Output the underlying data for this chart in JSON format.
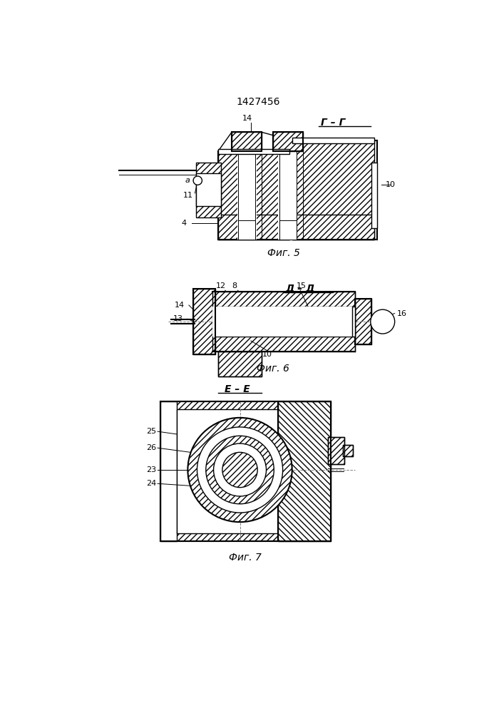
{
  "title": "1427456",
  "fig5_label": "Фиг. 5",
  "fig6_label": "Фиг. 6",
  "fig7_label": "Фиг. 7",
  "section_gg": "Г – Г",
  "section_dd": "Д – Д",
  "section_ee": "Е – Е",
  "bg_color": "#ffffff"
}
